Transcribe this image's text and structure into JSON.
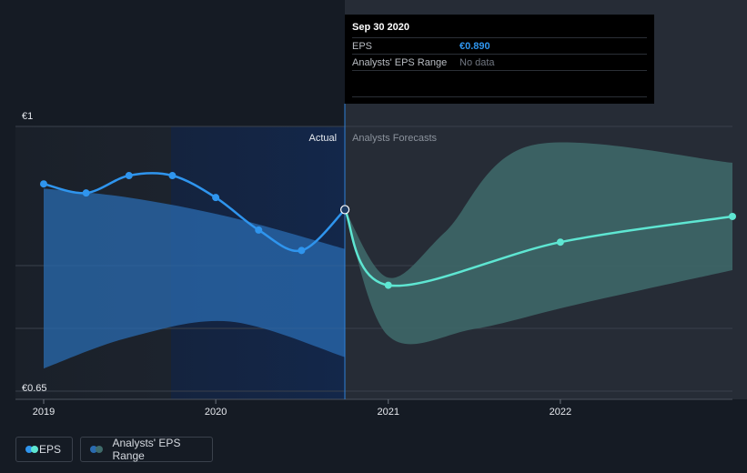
{
  "chart_data": {
    "type": "line",
    "y_axis": {
      "min_label": "€0.65",
      "max_label": "€1",
      "ylim": [
        0.65,
        1.0
      ],
      "gridlines": [
        0.65,
        0.733,
        0.816,
        1.0
      ]
    },
    "x_axis": {
      "tick_labels": [
        "2019",
        "2020",
        "2021",
        "2022"
      ]
    },
    "divider": {
      "left_label": "Actual",
      "right_label": "Analysts Forecasts",
      "at": "2020-09-30"
    },
    "series": [
      {
        "name": "EPS",
        "color": "#2f95ee",
        "kind": "actual",
        "points": [
          {
            "x": "2018-12-31",
            "y": 0.924
          },
          {
            "x": "2019-03-31",
            "y": 0.912
          },
          {
            "x": "2019-06-30",
            "y": 0.935
          },
          {
            "x": "2019-09-30",
            "y": 0.935
          },
          {
            "x": "2019-12-31",
            "y": 0.906
          },
          {
            "x": "2020-03-31",
            "y": 0.863
          },
          {
            "x": "2020-06-30",
            "y": 0.836
          },
          {
            "x": "2020-09-30",
            "y": 0.89
          }
        ]
      },
      {
        "name": "EPS",
        "color": "#5ee6d2",
        "kind": "forecast",
        "points": [
          {
            "x": "2020-09-30",
            "y": 0.89
          },
          {
            "x": "2020-12-31",
            "y": 0.79
          },
          {
            "x": "2021-12-31",
            "y": 0.847
          },
          {
            "x": "2022-12-31",
            "y": 0.881
          }
        ]
      }
    ],
    "ranges": [
      {
        "name": "Analysts' EPS Range",
        "kind": "past-band",
        "color": "#2a6bb0",
        "upper": [
          {
            "x": "2018-12-31",
            "y": 0.918
          },
          {
            "x": "2019-06-30",
            "y": 0.906
          },
          {
            "x": "2020-01-31",
            "y": 0.88
          },
          {
            "x": "2020-09-30",
            "y": 0.838
          }
        ],
        "lower": [
          {
            "x": "2018-12-31",
            "y": 0.68
          },
          {
            "x": "2019-06-30",
            "y": 0.721
          },
          {
            "x": "2020-01-31",
            "y": 0.742
          },
          {
            "x": "2020-09-30",
            "y": 0.695
          }
        ]
      },
      {
        "name": "Analysts' EPS Range",
        "kind": "forecast-band",
        "color": "#3f6b6b",
        "upper": [
          {
            "x": "2020-09-30",
            "y": 0.89
          },
          {
            "x": "2020-12-31",
            "y": 0.8
          },
          {
            "x": "2021-04-30",
            "y": 0.86
          },
          {
            "x": "2021-10-31",
            "y": 0.975
          },
          {
            "x": "2022-12-31",
            "y": 0.952
          }
        ],
        "lower": [
          {
            "x": "2020-09-30",
            "y": 0.89
          },
          {
            "x": "2020-12-31",
            "y": 0.723
          },
          {
            "x": "2021-06-30",
            "y": 0.732
          },
          {
            "x": "2022-01-31",
            "y": 0.764
          },
          {
            "x": "2022-12-31",
            "y": 0.81
          }
        ]
      }
    ],
    "legend": {
      "position": "bottom-left",
      "items": [
        {
          "label": "EPS",
          "colors": [
            "#2f95ee",
            "#5ee6d2"
          ]
        },
        {
          "label": "Analysts' EPS Range",
          "colors": [
            "#2a6bb0",
            "#3f6b6b"
          ]
        }
      ]
    }
  },
  "tooltip": {
    "date": "Sep 30 2020",
    "rows": [
      {
        "label": "EPS",
        "value": "€0.890"
      },
      {
        "label": "Analysts' EPS Range",
        "value": "No data"
      }
    ]
  }
}
